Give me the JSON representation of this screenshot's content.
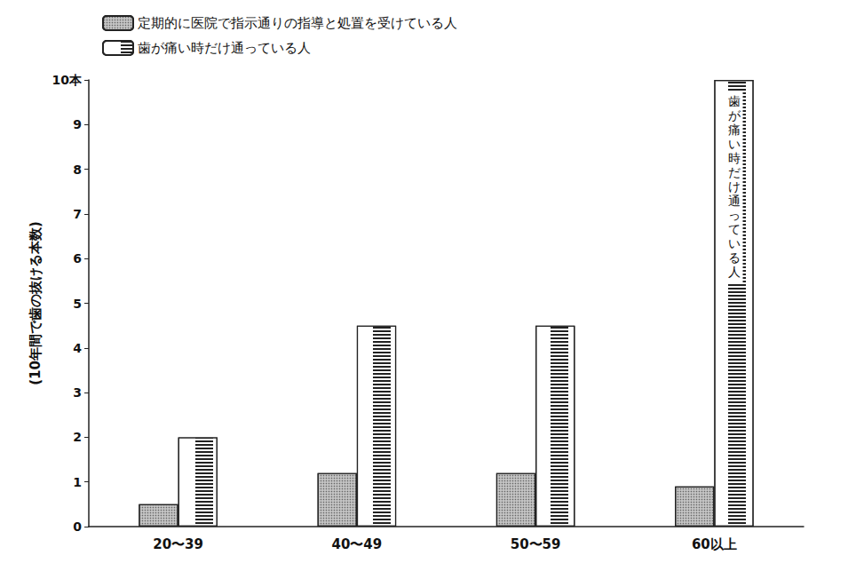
{
  "chart_data": {
    "type": "bar",
    "y_label": "(10年間で歯の抜ける本数)",
    "categories": [
      "20〜39",
      "40〜49",
      "50〜59",
      "60以上"
    ],
    "series": [
      {
        "name": "定期的に医院で指示通りの指導と処置を受けている人",
        "color": "#c4c4c4",
        "values": [
          0.5,
          1.2,
          1.2,
          0.9
        ]
      },
      {
        "name": "歯が痛い時だけ通っている人",
        "color": "#ffffff",
        "values": [
          2.0,
          4.5,
          4.5,
          10
        ]
      }
    ],
    "ylim": [
      0,
      10
    ],
    "yticks": [
      0,
      1,
      2,
      3,
      4,
      5,
      6,
      7,
      8,
      9,
      {
        "value": 10,
        "label": "10本"
      }
    ],
    "grid": false,
    "legend": "top-left",
    "annotations": [
      {
        "text": "歯が痛い時だけ通っている人",
        "category": "60以上",
        "series": "歯が痛い時だけ通っている人"
      }
    ]
  }
}
